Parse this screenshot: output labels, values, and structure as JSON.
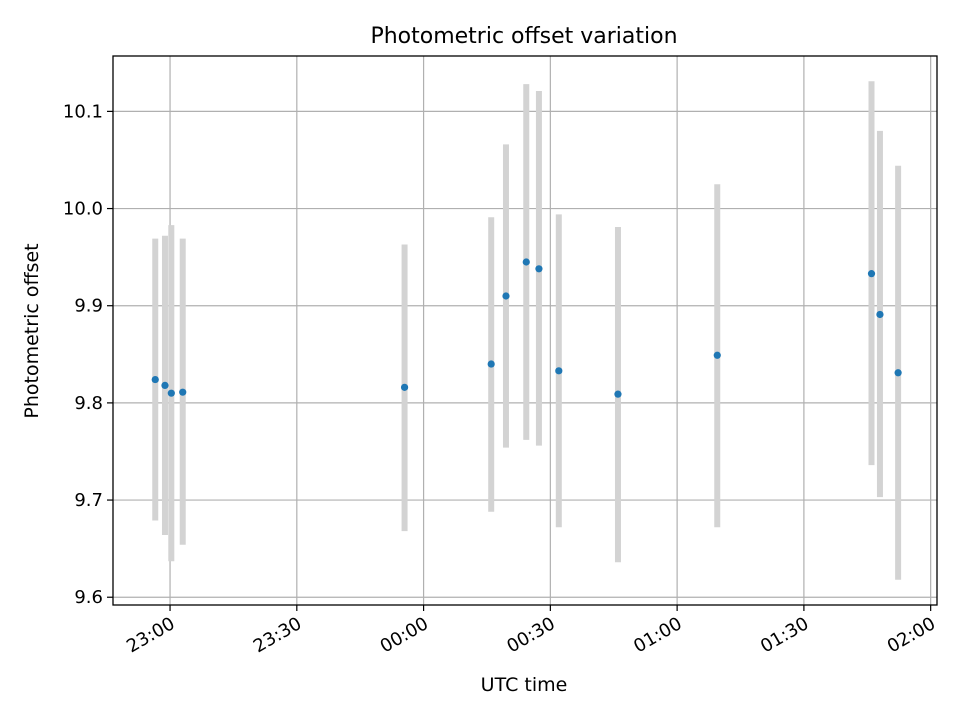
{
  "chart_data": {
    "type": "scatter",
    "title": "Photometric offset variation",
    "xlabel": "UTC time",
    "ylabel": "Photometric offset",
    "x_ticks": [
      "23:00",
      "23:30",
      "00:00",
      "00:30",
      "01:00",
      "01:30",
      "02:00"
    ],
    "x_tick_minutes": [
      0,
      30,
      60,
      90,
      120,
      150,
      180
    ],
    "xlim_minutes": [
      -13.5,
      181.5
    ],
    "y_ticks": [
      "9.6",
      "9.7",
      "9.8",
      "9.9",
      "10.0",
      "10.1"
    ],
    "y_tick_values": [
      9.6,
      9.7,
      9.8,
      9.9,
      10.0,
      10.1
    ],
    "ylim": [
      9.592,
      10.157
    ],
    "grid": true,
    "colors": {
      "points": "#1f77b4",
      "errorbars": "#d3d3d3",
      "grid": "#b0b0b0"
    },
    "points": [
      {
        "t": "22:56.5",
        "y": 9.824,
        "lo": 9.679,
        "hi": 9.969
      },
      {
        "t": "22:58.8",
        "y": 9.818,
        "lo": 9.664,
        "hi": 9.972
      },
      {
        "t": "23:00.3",
        "y": 9.81,
        "lo": 9.637,
        "hi": 9.983
      },
      {
        "t": "23:03.0",
        "y": 9.811,
        "lo": 9.654,
        "hi": 9.969
      },
      {
        "t": "23:55.5",
        "y": 9.816,
        "lo": 9.668,
        "hi": 9.963
      },
      {
        "t": "00:16.0",
        "y": 9.84,
        "lo": 9.688,
        "hi": 9.991
      },
      {
        "t": "00:19.5",
        "y": 9.91,
        "lo": 9.754,
        "hi": 10.066
      },
      {
        "t": "00:24.3",
        "y": 9.945,
        "lo": 9.762,
        "hi": 10.128
      },
      {
        "t": "00:27.3",
        "y": 9.938,
        "lo": 9.756,
        "hi": 10.121
      },
      {
        "t": "00:32.0",
        "y": 9.833,
        "lo": 9.672,
        "hi": 9.994
      },
      {
        "t": "00:46.0",
        "y": 9.809,
        "lo": 9.636,
        "hi": 9.981
      },
      {
        "t": "01:09.5",
        "y": 9.849,
        "lo": 9.672,
        "hi": 10.025
      },
      {
        "t": "01:46.0",
        "y": 9.933,
        "lo": 9.736,
        "hi": 10.131
      },
      {
        "t": "01:48.0",
        "y": 9.891,
        "lo": 9.703,
        "hi": 10.08
      },
      {
        "t": "01:52.3",
        "y": 9.831,
        "lo": 9.618,
        "hi": 10.044
      }
    ]
  }
}
